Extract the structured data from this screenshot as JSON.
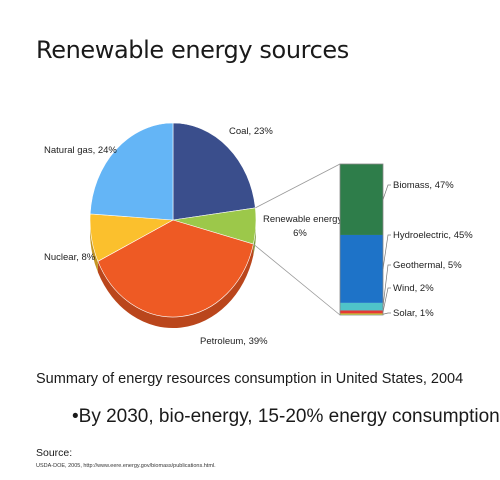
{
  "slide": {
    "title": "Renewable energy sources",
    "summary": "Summary of energy resources consumption in United States, 2004",
    "bullet": "•By 2030, bio-energy, 15-20% energy consumption",
    "source_label": "Source:",
    "source_text": "USDA-DOE, 2005, http://www.eere.energy.gov/biomass/publications.html."
  },
  "chart_data": [
    {
      "type": "pie",
      "categories": [
        "Coal",
        "Renewable energy",
        "Petroleum",
        "Nuclear",
        "Natural gas"
      ],
      "values": [
        23,
        6,
        39,
        8,
        24
      ],
      "labels": [
        "Coal, 23%",
        "Renewable energy,",
        "6%",
        "Petroleum, 39%",
        "Nuclear, 8%",
        "Natural gas, 24%"
      ],
      "colors": [
        "#3a4e8c",
        "#9cc84a",
        "#ee5a24",
        "#fbc02d",
        "#64b5f6"
      ]
    },
    {
      "type": "bar",
      "stacked": true,
      "categories": [
        "Biomass",
        "Hydroelectric",
        "Geothermal",
        "Wind",
        "Solar"
      ],
      "values": [
        47,
        45,
        5,
        2,
        1
      ],
      "labels": [
        "Biomass, 47%",
        "Hydroelectric, 45%",
        "Geothermal, 5%",
        "Wind, 2%",
        "Solar, 1%"
      ],
      "colors": [
        "#2e7d4a",
        "#1e73c8",
        "#4fc3c9",
        "#e53935",
        "#cddc39"
      ]
    }
  ]
}
